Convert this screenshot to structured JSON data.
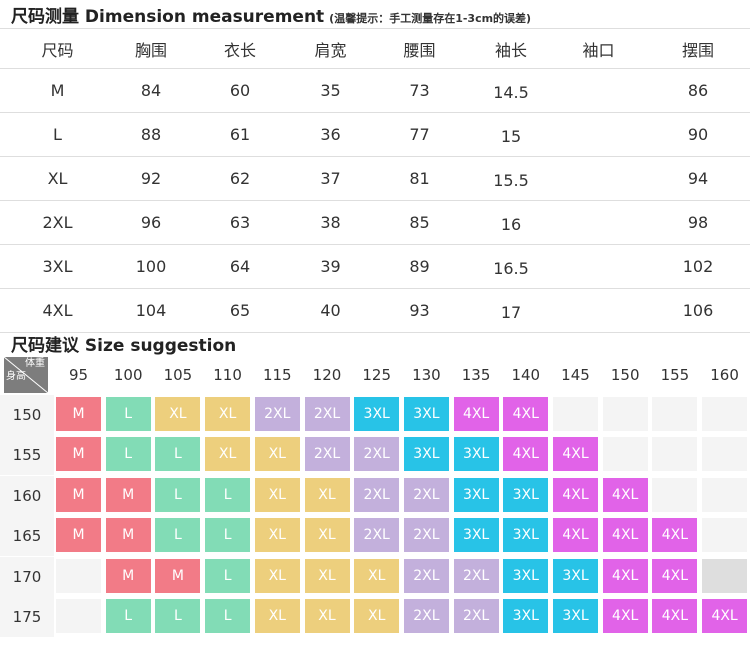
{
  "dimension": {
    "title": "尺码测量 Dimension measurement",
    "note": "(温馨提示：手工测量存在1-3cm的误差)",
    "headers": [
      "尺码",
      "胸围",
      "衣长",
      "肩宽",
      "腰围",
      "袖长",
      "袖口",
      "摆围"
    ],
    "rows": [
      [
        "M",
        "84",
        "60",
        "35",
        "73",
        "14.5",
        "",
        "86"
      ],
      [
        "L",
        "88",
        "61",
        "36",
        "77",
        "15",
        "",
        "90"
      ],
      [
        "XL",
        "92",
        "62",
        "37",
        "81",
        "15.5",
        "",
        "94"
      ],
      [
        "2XL",
        "96",
        "63",
        "38",
        "85",
        "16",
        "",
        "98"
      ],
      [
        "3XL",
        "100",
        "64",
        "39",
        "89",
        "16.5",
        "",
        "102"
      ],
      [
        "4XL",
        "104",
        "65",
        "40",
        "93",
        "17",
        "",
        "106"
      ]
    ]
  },
  "suggestion": {
    "title": "尺码建议 Size suggestion",
    "corner": {
      "weight": "体重",
      "height": "身高"
    },
    "weights": [
      "95",
      "100",
      "105",
      "110",
      "115",
      "120",
      "125",
      "130",
      "135",
      "140",
      "145",
      "150",
      "155",
      "160"
    ],
    "heights": [
      "150",
      "155",
      "160",
      "165",
      "170",
      "175"
    ],
    "grid": [
      [
        "M",
        "L",
        "XL",
        "XL",
        "2XL",
        "2XL",
        "3XL",
        "3XL",
        "4XL",
        "4XL",
        "",
        "",
        "",
        ""
      ],
      [
        "M",
        "L",
        "L",
        "XL",
        "XL",
        "2XL",
        "2XL",
        "3XL",
        "3XL",
        "4XL",
        "4XL",
        "",
        "",
        ""
      ],
      [
        "M",
        "M",
        "L",
        "L",
        "XL",
        "XL",
        "2XL",
        "2XL",
        "3XL",
        "3XL",
        "4XL",
        "4XL",
        "",
        ""
      ],
      [
        "M",
        "M",
        "L",
        "L",
        "XL",
        "XL",
        "2XL",
        "2XL",
        "3XL",
        "3XL",
        "4XL",
        "4XL",
        "4XL",
        ""
      ],
      [
        "",
        "M",
        "M",
        "L",
        "XL",
        "XL",
        "XL",
        "2XL",
        "2XL",
        "3XL",
        "3XL",
        "4XL",
        "4XL",
        "?"
      ],
      [
        "",
        "L",
        "L",
        "L",
        "XL",
        "XL",
        "XL",
        "2XL",
        "2XL",
        "3XL",
        "3XL",
        "4XL",
        "4XL",
        "4XL"
      ]
    ],
    "colors": {
      "M": "#f27b87",
      "L": "#82dcb6",
      "XL": "#edcf7d",
      "2XL": "#c3b0dc",
      "3XL": "#28c3e7",
      "4XL": "#e163e8",
      "?": "#dedede",
      "empty": "#f4f4f4",
      "header": "#f5f5f5"
    }
  }
}
